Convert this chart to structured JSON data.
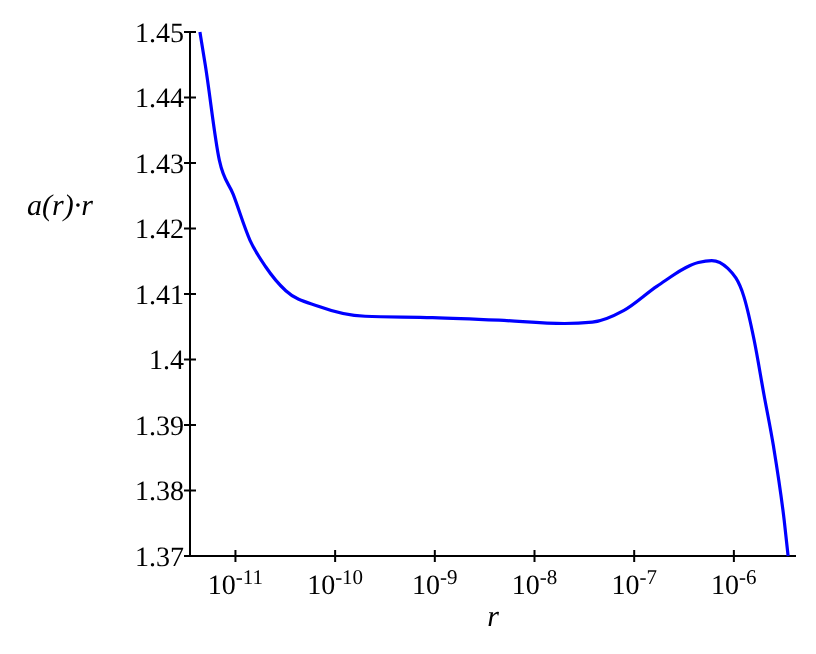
{
  "chart_data": {
    "type": "line",
    "xlabel": "r",
    "ylabel": "a(r)·r",
    "log": "x",
    "marker": "none",
    "line_style": "solid",
    "x": [
      4.4e-12,
      5e-12,
      6.9e-12,
      9.5e-12,
      1.4e-11,
      2e-11,
      3.2e-11,
      6.9e-11,
      2e-10,
      9.5e-10,
      4.4e-09,
      2e-08,
      3.8e-08,
      7.9e-08,
      1.7e-07,
      4.4e-07,
      6e-07,
      8.7e-07,
      1.26e-06,
      1.6e-06,
      2e-06,
      2.5e-06,
      3.2e-06,
      3.5e-06
    ],
    "series": [
      {
        "color": "#0000ff",
        "values": [
          1.45,
          1.4448,
          1.4304,
          1.4252,
          1.4182,
          1.4142,
          1.4105,
          1.4081,
          1.4066,
          1.4064,
          1.406,
          1.4055,
          1.4057,
          1.4075,
          1.4112,
          1.4148,
          1.4151,
          1.4139,
          1.4096,
          1.4029,
          1.3947,
          1.3867,
          1.3754,
          1.37
        ]
      }
    ],
    "xlim": [
      3.5e-12,
      4.2e-06
    ],
    "ylim": [
      1.37,
      1.45
    ],
    "xticks": [
      {
        "value": 1e-11,
        "label": "10$^{-11}$"
      },
      {
        "value": 1e-10,
        "label": "10$^{-10}$"
      },
      {
        "value": 1e-09,
        "label": "10$^{-9}$"
      },
      {
        "value": 1e-08,
        "label": "10$^{-8}$"
      },
      {
        "value": 1e-07,
        "label": "10$^{-7}$"
      },
      {
        "value": 1e-06,
        "label": "10$^{-6}$"
      }
    ],
    "yticks": [
      1.37,
      1.38,
      1.39,
      1.4,
      1.41,
      1.42,
      1.43,
      1.44,
      1.45
    ]
  }
}
